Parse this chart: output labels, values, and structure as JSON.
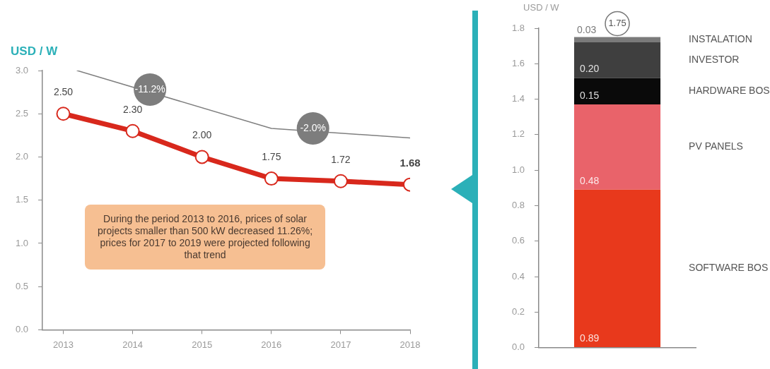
{
  "chart_data": [
    {
      "type": "line",
      "ylabel": "USD / W",
      "x": [
        2013,
        2014,
        2015,
        2016,
        2017,
        2018
      ],
      "xlim": [
        2012.7,
        2018
      ],
      "xticks": [
        2013,
        2014,
        2015,
        2016,
        2017,
        2018
      ],
      "ylim": [
        0,
        3
      ],
      "yticks": [
        {
          "value": 0,
          "label": "0.0"
        },
        0.5,
        {
          "value": 1,
          "label": "1.0"
        },
        1.5,
        {
          "value": 2,
          "label": "2.0"
        },
        2.5,
        {
          "value": 3,
          "label": "3.0"
        }
      ],
      "marker": "circle",
      "series": [
        {
          "color": "#d8281c",
          "values": [
            2.5,
            2.3,
            2.0,
            1.75,
            1.72,
            1.68
          ],
          "value_labels": [
            "2.50",
            "2.30",
            "2.00",
            "1.75",
            "1.72",
            "1.68"
          ]
        },
        {
          "color": "#7f7f7f",
          "x": [
            2013.2,
            2016,
            2018
          ],
          "values": [
            3.0,
            2.33,
            2.22
          ],
          "marker": "none"
        }
      ],
      "annotations": [
        {
          "text": "-11.2%",
          "x": 2014.25,
          "y": 2.78
        },
        {
          "text": "-2.0%",
          "x": 2016.6,
          "y": 2.33
        },
        "During the period 2013 to 2016, prices of solar projects smaller than 500 kW decreased 11.26%; prices for 2017 to 2019 were projected following that trend"
      ]
    },
    {
      "type": "bar",
      "stacked": true,
      "ylabel": "USD / W",
      "categories": [
        null
      ],
      "ylim": [
        0,
        1.8
      ],
      "yticks": [
        {
          "value": 0,
          "label": "0.0"
        },
        0.2,
        0.4,
        0.6,
        0.8,
        {
          "value": 1,
          "label": "1.0"
        },
        1.2,
        1.4,
        1.6,
        1.8
      ],
      "series": [
        {
          "name": "SOFTWARE BOS",
          "color": "#e8391c",
          "values": [
            0.89
          ],
          "value_labels": [
            "0.89"
          ]
        },
        {
          "name": "PV PANELS",
          "color": "#e9636a",
          "values": [
            0.48
          ],
          "value_labels": [
            "0.48"
          ]
        },
        {
          "name": "HARDWARE BOS",
          "color": "#0a0a0a",
          "values": [
            0.15
          ],
          "value_labels": [
            "0.15"
          ]
        },
        {
          "name": "INVESTOR",
          "color": "#3f3f3f",
          "values": [
            0.2
          ],
          "value_labels": [
            "0.20"
          ]
        },
        {
          "name": "INSTALATION",
          "color": "#7a7a7a",
          "values": [
            0.03
          ],
          "value_labels": [
            "0.03"
          ]
        }
      ],
      "totals": [
        "1.75"
      ]
    }
  ]
}
